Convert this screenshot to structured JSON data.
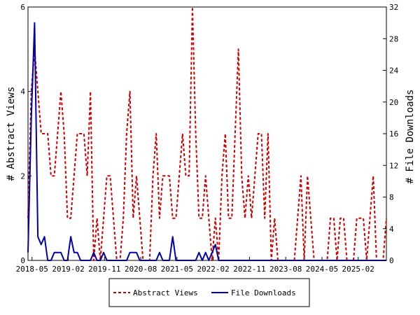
{
  "chart_data": {
    "type": "line",
    "xlabel": "",
    "ylabel_left": "# Abstract Views",
    "ylabel_right": "# File Downloads",
    "ylim_left": [
      0,
      6
    ],
    "ylim_right": [
      0,
      32
    ],
    "yticks_left": [
      "0",
      "2",
      "4",
      "6"
    ],
    "yticks_right": [
      "0",
      "4",
      "8",
      "12",
      "16",
      "20",
      "24",
      "28",
      "32"
    ],
    "xticks": [
      "2018-05",
      "2019-02",
      "2019-11",
      "2020-08",
      "2021-05",
      "2022-02",
      "2022-11",
      "2023-08",
      "2024-05",
      "2025-02"
    ],
    "x_start": "2018-04",
    "x_end": "2025-09",
    "grid": false,
    "legend_position": "bottom",
    "series": [
      {
        "name": "Abstract Views",
        "axis": "left",
        "color": "#cc0000",
        "style": "dashed",
        "values": [
          1,
          4,
          5,
          4,
          3,
          3,
          3,
          2,
          2,
          3,
          4,
          3,
          1,
          1,
          2,
          3,
          3,
          3,
          2,
          4,
          0,
          1,
          0,
          1,
          2,
          2,
          1,
          0,
          0,
          1,
          3,
          4,
          1,
          2,
          1,
          0,
          0,
          0,
          2,
          3,
          1,
          2,
          2,
          2,
          1,
          1,
          2,
          3,
          2,
          2,
          6,
          3,
          1,
          1,
          2,
          1,
          0,
          1,
          0,
          2,
          3,
          1,
          1,
          3,
          5,
          2,
          1,
          2,
          1,
          2,
          3,
          3,
          1,
          3,
          0,
          1,
          0,
          0,
          0,
          0,
          0,
          0,
          1,
          2,
          0,
          2,
          1,
          0,
          0,
          0,
          0,
          0,
          1,
          1,
          0,
          1,
          1,
          0,
          0,
          0,
          1,
          1,
          1,
          0,
          1,
          2,
          0,
          0,
          0,
          1
        ]
      },
      {
        "name": "File Downloads",
        "axis": "right",
        "color": "#0000aa",
        "style": "solid",
        "values": [
          1,
          18,
          30,
          3,
          2,
          3,
          0,
          0,
          1,
          1,
          1,
          0,
          0,
          3,
          1,
          1,
          0,
          0,
          0,
          0,
          1,
          0,
          0,
          1,
          0,
          0,
          0,
          0,
          0,
          0,
          0,
          1,
          1,
          1,
          0,
          0,
          0,
          0,
          0,
          0,
          1,
          0,
          0,
          0,
          3,
          0,
          0,
          0,
          0,
          0,
          0,
          0,
          1,
          0,
          1,
          0,
          1,
          2,
          0,
          0,
          0,
          0,
          0,
          0,
          0,
          0,
          0,
          0,
          0,
          0,
          0,
          0,
          0,
          0,
          0,
          0,
          0,
          0,
          0,
          0,
          0,
          0,
          0,
          0,
          0,
          0,
          0,
          0,
          0,
          0,
          0,
          0,
          0,
          0,
          0,
          0,
          0,
          0,
          0,
          0,
          0,
          0,
          0,
          0,
          0,
          0,
          0,
          0,
          0,
          0
        ]
      }
    ]
  }
}
